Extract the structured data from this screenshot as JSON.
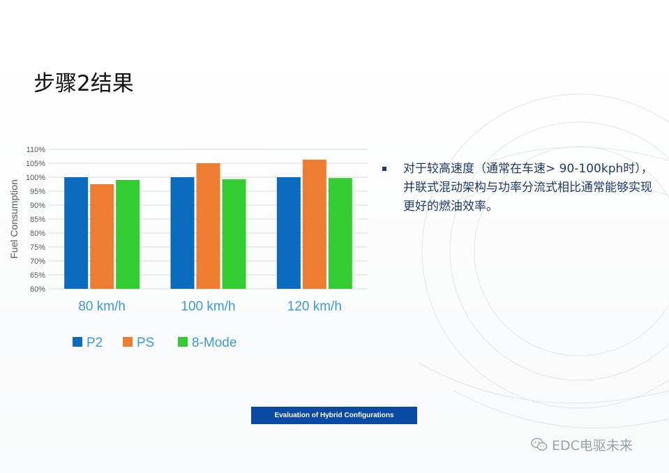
{
  "slide": {
    "title": "步骤2结果",
    "bullet_text": "对于较高速度（通常在车速> 90-100kph时），并联式混动架构与功率分流式相比通常能够实现更好的燃油效率。",
    "footer": "Evaluation of Hybrid Configurations",
    "watermark": "EDC电驱未来",
    "watermark_icon": "wechat-icon"
  },
  "colors": {
    "P2": "#0b6bbf",
    "PS": "#ed7d31",
    "8-Mode": "#33cc33",
    "category_label": "#3b9ad9",
    "axis_text": "#595959",
    "grid": "#d9d9d9",
    "footer_bar": "#0b4aa2"
  },
  "chart_data": {
    "type": "bar",
    "ylabel": "Fuel Consumption",
    "xlabel": "",
    "categories": [
      "80 km/h",
      "100 km/h",
      "120 km/h"
    ],
    "series": [
      {
        "name": "P2",
        "values": [
          100,
          100,
          100
        ]
      },
      {
        "name": "PS",
        "values": [
          97.5,
          105,
          106.3
        ]
      },
      {
        "name": "8-Mode",
        "values": [
          99,
          99.3,
          99.7
        ]
      }
    ],
    "ylim": [
      60,
      110
    ],
    "yticks": [
      "60%",
      "65%",
      "70%",
      "75%",
      "80%",
      "85%",
      "90%",
      "95%",
      "100%",
      "105%",
      "110%"
    ],
    "grid": true,
    "legend_position": "bottom-left"
  }
}
